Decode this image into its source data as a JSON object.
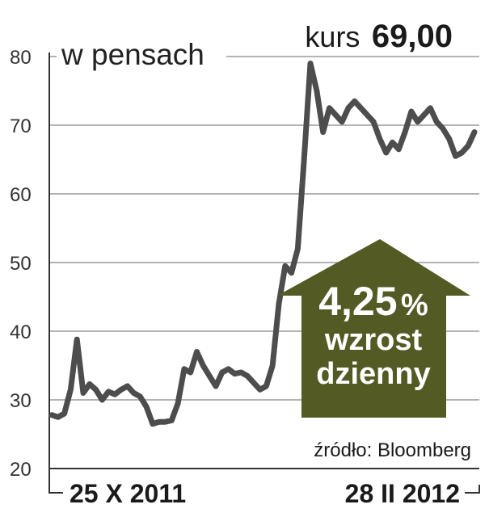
{
  "chart_data": {
    "type": "line",
    "unit_label": "w pensach",
    "price_label": "kurs",
    "price_value": "69,00",
    "yticks": [
      20,
      30,
      40,
      50,
      60,
      70,
      80
    ],
    "ylim": [
      20,
      80
    ],
    "grid": true,
    "x_start_label": "25 X 2011",
    "x_end_label": "28 II 2012",
    "source": "źródło: Bloomberg",
    "callout": {
      "percent": "4,25",
      "percent_sign": "%",
      "line1": "wzrost",
      "line2": "dzienny",
      "color": "#545a24"
    },
    "line_color": "#4d4d4d",
    "series": [
      {
        "values": [
          27.8,
          27.5,
          28.0,
          31.5,
          38.8,
          31.0,
          32.3,
          31.5,
          30.0,
          31.2,
          30.8,
          31.5,
          32.0,
          31.0,
          30.5,
          29.0,
          26.5,
          26.8,
          26.8,
          27.0,
          29.5,
          34.5,
          34.0,
          37.0,
          35.0,
          33.5,
          32.0,
          34.0,
          34.5,
          33.8,
          34.0,
          33.5,
          32.5,
          31.5,
          32.0,
          35.0,
          44.0,
          49.5,
          48.5,
          52.0,
          65.0,
          79.0,
          75.0,
          69.0,
          72.5,
          71.5,
          70.5,
          72.5,
          73.5,
          72.5,
          71.5,
          70.5,
          68.0,
          66.0,
          67.5,
          66.5,
          69.0,
          72.0,
          70.5,
          71.5,
          72.5,
          70.5,
          69.5,
          68.0,
          65.5,
          66.0,
          67.0,
          69.0
        ]
      }
    ]
  }
}
